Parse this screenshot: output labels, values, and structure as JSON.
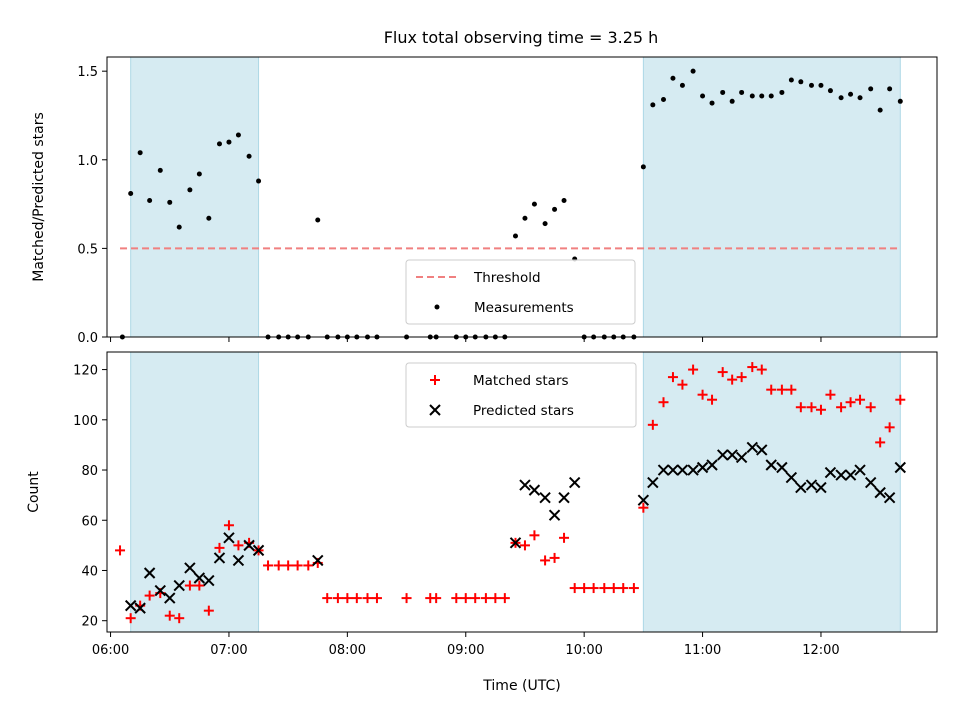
{
  "chart_data": [
    {
      "type": "scatter",
      "title": "Flux total observing time = 3.25 h",
      "xlabel": "",
      "ylabel": "Matched/Predicted stars",
      "ylim": [
        0,
        1.58
      ],
      "yticks": [
        0,
        0.5,
        1.0,
        1.5
      ],
      "yticklabels": [
        "0.0",
        "0.5",
        "1.0",
        "1.5"
      ],
      "xlim": [
        5.97,
        12.98
      ],
      "threshold": {
        "name": "Threshold",
        "value": 0.5,
        "x_range": [
          6.08,
          12.67
        ],
        "color": "#f08080"
      },
      "legend": {
        "position": "lower-center",
        "entries": [
          "Threshold",
          "Measurements"
        ]
      },
      "series": [
        {
          "name": "Measurements",
          "color": "#000000",
          "points": [
            [
              6.1,
              0.0
            ],
            [
              6.17,
              0.81
            ],
            [
              6.25,
              1.04
            ],
            [
              6.33,
              0.77
            ],
            [
              6.42,
              0.94
            ],
            [
              6.5,
              0.76
            ],
            [
              6.58,
              0.62
            ],
            [
              6.67,
              0.83
            ],
            [
              6.75,
              0.92
            ],
            [
              6.83,
              0.67
            ],
            [
              6.92,
              1.09
            ],
            [
              7.0,
              1.1
            ],
            [
              7.08,
              1.14
            ],
            [
              7.17,
              1.02
            ],
            [
              7.25,
              0.88
            ],
            [
              7.33,
              0.0
            ],
            [
              7.42,
              0.0
            ],
            [
              7.5,
              0.0
            ],
            [
              7.58,
              0.0
            ],
            [
              7.67,
              0.0
            ],
            [
              7.75,
              0.66
            ],
            [
              7.83,
              0.0
            ],
            [
              7.92,
              0.0
            ],
            [
              8.0,
              0.0
            ],
            [
              8.08,
              0.0
            ],
            [
              8.17,
              0.0
            ],
            [
              8.25,
              0.0
            ],
            [
              8.5,
              0.0
            ],
            [
              8.7,
              0.0
            ],
            [
              8.75,
              0.0
            ],
            [
              8.92,
              0.0
            ],
            [
              9.0,
              0.0
            ],
            [
              9.08,
              0.0
            ],
            [
              9.17,
              0.0
            ],
            [
              9.25,
              0.0
            ],
            [
              9.33,
              0.0
            ],
            [
              9.42,
              0.57
            ],
            [
              9.5,
              0.67
            ],
            [
              9.58,
              0.75
            ],
            [
              9.67,
              0.64
            ],
            [
              9.75,
              0.72
            ],
            [
              9.83,
              0.77
            ],
            [
              9.92,
              0.44
            ],
            [
              10.0,
              0.0
            ],
            [
              10.08,
              0.0
            ],
            [
              10.17,
              0.0
            ],
            [
              10.25,
              0.0
            ],
            [
              10.33,
              0.0
            ],
            [
              10.42,
              0.0
            ],
            [
              10.5,
              0.96
            ],
            [
              10.58,
              1.31
            ],
            [
              10.67,
              1.34
            ],
            [
              10.75,
              1.46
            ],
            [
              10.83,
              1.42
            ],
            [
              10.92,
              1.5
            ],
            [
              11.0,
              1.36
            ],
            [
              11.08,
              1.32
            ],
            [
              11.17,
              1.38
            ],
            [
              11.25,
              1.33
            ],
            [
              11.33,
              1.38
            ],
            [
              11.42,
              1.36
            ],
            [
              11.5,
              1.36
            ],
            [
              11.58,
              1.36
            ],
            [
              11.67,
              1.38
            ],
            [
              11.75,
              1.45
            ],
            [
              11.83,
              1.44
            ],
            [
              11.92,
              1.42
            ],
            [
              12.0,
              1.42
            ],
            [
              12.08,
              1.39
            ],
            [
              12.17,
              1.35
            ],
            [
              12.25,
              1.37
            ],
            [
              12.33,
              1.35
            ],
            [
              12.42,
              1.4
            ],
            [
              12.5,
              1.28
            ],
            [
              12.58,
              1.4
            ],
            [
              12.67,
              1.33
            ]
          ]
        }
      ],
      "shaded_regions": [
        [
          6.17,
          7.25
        ],
        [
          10.5,
          12.67
        ]
      ],
      "shade_color": "#add8e6"
    },
    {
      "type": "scatter",
      "title": "",
      "xlabel": "Time (UTC)",
      "ylabel": "Count",
      "ylim": [
        15.5,
        127
      ],
      "yticks": [
        20,
        40,
        60,
        80,
        100,
        120
      ],
      "yticklabels": [
        "20",
        "40",
        "60",
        "80",
        "100",
        "120"
      ],
      "xlim": [
        5.97,
        12.98
      ],
      "xticks": [
        6,
        7,
        8,
        9,
        10,
        11,
        12
      ],
      "xticklabels": [
        "06:00",
        "07:00",
        "08:00",
        "09:00",
        "10:00",
        "11:00",
        "12:00"
      ],
      "legend": {
        "position": "top-center",
        "entries": [
          "Matched stars",
          "Predicted stars"
        ]
      },
      "series": [
        {
          "name": "Matched stars",
          "marker": "+",
          "color": "#ff0000",
          "points": [
            [
              6.08,
              48
            ],
            [
              6.17,
              21
            ],
            [
              6.25,
              26
            ],
            [
              6.33,
              30
            ],
            [
              6.42,
              31
            ],
            [
              6.5,
              22
            ],
            [
              6.58,
              21
            ],
            [
              6.67,
              34
            ],
            [
              6.75,
              34
            ],
            [
              6.83,
              24
            ],
            [
              6.92,
              49
            ],
            [
              7.0,
              58
            ],
            [
              7.08,
              50
            ],
            [
              7.17,
              51
            ],
            [
              7.25,
              48
            ],
            [
              7.33,
              42
            ],
            [
              7.42,
              42
            ],
            [
              7.5,
              42
            ],
            [
              7.58,
              42
            ],
            [
              7.67,
              42
            ],
            [
              7.75,
              43
            ],
            [
              7.83,
              29
            ],
            [
              7.92,
              29
            ],
            [
              8.0,
              29
            ],
            [
              8.08,
              29
            ],
            [
              8.17,
              29
            ],
            [
              8.25,
              29
            ],
            [
              8.5,
              29
            ],
            [
              8.7,
              29
            ],
            [
              8.75,
              29
            ],
            [
              8.92,
              29
            ],
            [
              9.0,
              29
            ],
            [
              9.08,
              29
            ],
            [
              9.17,
              29
            ],
            [
              9.25,
              29
            ],
            [
              9.33,
              29
            ],
            [
              9.42,
              51
            ],
            [
              9.5,
              50
            ],
            [
              9.58,
              54
            ],
            [
              9.67,
              44
            ],
            [
              9.75,
              45
            ],
            [
              9.83,
              53
            ],
            [
              9.92,
              33
            ],
            [
              10.0,
              33
            ],
            [
              10.08,
              33
            ],
            [
              10.17,
              33
            ],
            [
              10.25,
              33
            ],
            [
              10.33,
              33
            ],
            [
              10.42,
              33
            ],
            [
              10.5,
              65
            ],
            [
              10.58,
              98
            ],
            [
              10.67,
              107
            ],
            [
              10.75,
              117
            ],
            [
              10.83,
              114
            ],
            [
              10.92,
              120
            ],
            [
              11.0,
              110
            ],
            [
              11.08,
              108
            ],
            [
              11.17,
              119
            ],
            [
              11.25,
              116
            ],
            [
              11.33,
              117
            ],
            [
              11.42,
              121
            ],
            [
              11.5,
              120
            ],
            [
              11.58,
              112
            ],
            [
              11.67,
              112
            ],
            [
              11.75,
              112
            ],
            [
              11.83,
              105
            ],
            [
              11.92,
              105
            ],
            [
              12.0,
              104
            ],
            [
              12.08,
              110
            ],
            [
              12.17,
              105
            ],
            [
              12.25,
              107
            ],
            [
              12.33,
              108
            ],
            [
              12.42,
              105
            ],
            [
              12.5,
              91
            ],
            [
              12.58,
              97
            ],
            [
              12.67,
              108
            ]
          ]
        },
        {
          "name": "Predicted stars",
          "marker": "x",
          "color": "#000000",
          "points": [
            [
              6.17,
              26
            ],
            [
              6.25,
              25
            ],
            [
              6.33,
              39
            ],
            [
              6.42,
              32
            ],
            [
              6.5,
              29
            ],
            [
              6.58,
              34
            ],
            [
              6.67,
              41
            ],
            [
              6.75,
              37
            ],
            [
              6.83,
              36
            ],
            [
              6.92,
              45
            ],
            [
              7.0,
              53
            ],
            [
              7.08,
              44
            ],
            [
              7.17,
              50
            ],
            [
              7.25,
              48
            ],
            [
              7.75,
              44
            ],
            [
              9.42,
              51
            ],
            [
              9.5,
              74
            ],
            [
              9.58,
              72
            ],
            [
              9.67,
              69
            ],
            [
              9.75,
              62
            ],
            [
              9.83,
              69
            ],
            [
              9.92,
              75
            ],
            [
              10.5,
              68
            ],
            [
              10.58,
              75
            ],
            [
              10.67,
              80
            ],
            [
              10.75,
              80
            ],
            [
              10.83,
              80
            ],
            [
              10.92,
              80
            ],
            [
              11.0,
              81
            ],
            [
              11.08,
              82
            ],
            [
              11.17,
              86
            ],
            [
              11.25,
              86
            ],
            [
              11.33,
              85
            ],
            [
              11.42,
              89
            ],
            [
              11.5,
              88
            ],
            [
              11.58,
              82
            ],
            [
              11.67,
              81
            ],
            [
              11.75,
              77
            ],
            [
              11.83,
              73
            ],
            [
              11.92,
              74
            ],
            [
              12.0,
              73
            ],
            [
              12.08,
              79
            ],
            [
              12.17,
              78
            ],
            [
              12.25,
              78
            ],
            [
              12.33,
              80
            ],
            [
              12.42,
              75
            ],
            [
              12.5,
              71
            ],
            [
              12.58,
              69
            ],
            [
              12.67,
              81
            ]
          ]
        }
      ],
      "shaded_regions": [
        [
          6.17,
          7.25
        ],
        [
          10.5,
          12.67
        ]
      ],
      "shade_color": "#add8e6"
    }
  ]
}
